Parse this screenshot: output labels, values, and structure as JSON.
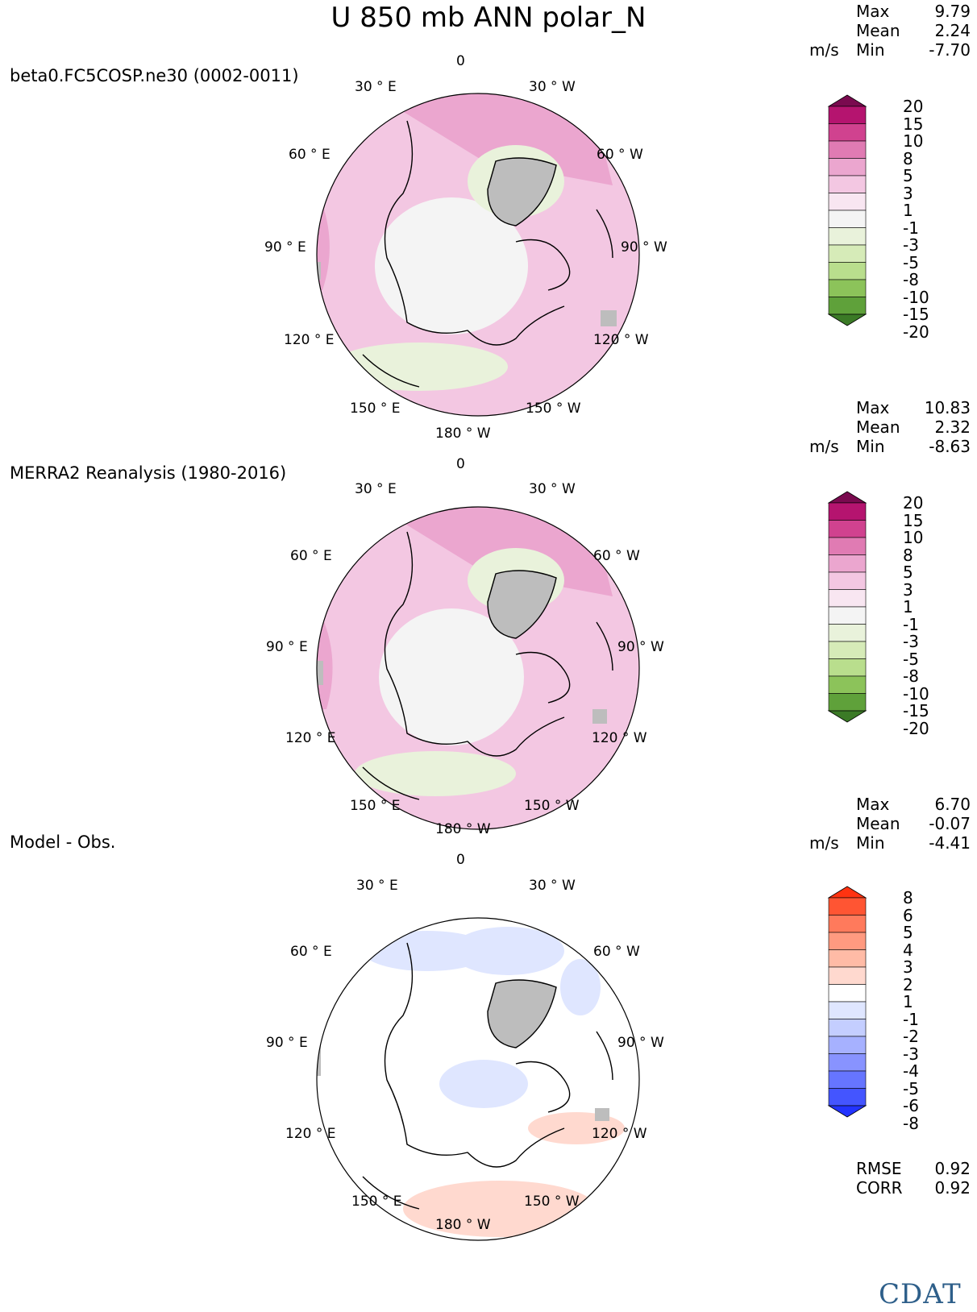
{
  "title": "U 850 mb ANN polar_N",
  "units": "m/s",
  "panels": [
    {
      "label": "beta0.FC5COSP.ne30 (0002-0011)",
      "stats": {
        "max_label": "Max",
        "max": "9.79",
        "mean_label": "Mean",
        "mean": "2.24",
        "min_label": "Min",
        "min": "-7.70"
      },
      "colorbar": [
        "20",
        "15",
        "10",
        "8",
        "5",
        "3",
        "1",
        "-1",
        "-3",
        "-5",
        "-8",
        "-10",
        "-15",
        "-20"
      ]
    },
    {
      "label": "MERRA2 Reanalysis (1980-2016)",
      "stats": {
        "max_label": "Max",
        "max": "10.83",
        "mean_label": "Mean",
        "mean": "2.32",
        "min_label": "Min",
        "min": "-8.63"
      },
      "colorbar": [
        "20",
        "15",
        "10",
        "8",
        "5",
        "3",
        "1",
        "-1",
        "-3",
        "-5",
        "-8",
        "-10",
        "-15",
        "-20"
      ]
    },
    {
      "label": "Model - Obs.",
      "stats": {
        "max_label": "Max",
        "max": "6.70",
        "mean_label": "Mean",
        "mean": "-0.07",
        "min_label": "Min",
        "min": "-4.41"
      },
      "colorbar": [
        "8",
        "6",
        "5",
        "4",
        "3",
        "2",
        "1",
        "-1",
        "-2",
        "-3",
        "-4",
        "-5",
        "-6",
        "-8"
      ],
      "metrics": {
        "rmse_label": "RMSE",
        "rmse": "0.92",
        "corr_label": "CORR",
        "corr": "0.92"
      }
    }
  ],
  "longitude_labels": {
    "top": "0",
    "bottom": "180 ° W",
    "left_30": "30 ° E",
    "right_30": "30 ° W",
    "left_60": "60 ° E",
    "right_60": "60 ° W",
    "left_90": "90 ° E",
    "right_90": "90 ° W",
    "left_120": "120 ° E",
    "right_120": "120 ° W",
    "left_150": "150 ° E",
    "right_150": "150 ° W"
  },
  "colors": {
    "field_palette": [
      "#7a0a4f",
      "#b5146f",
      "#d0428f",
      "#e07bb3",
      "#eba6cf",
      "#f3c7e2",
      "#f8e6f1",
      "#f4f4f4",
      "#e9f2db",
      "#d6ebb8",
      "#b9de8d",
      "#8cc35a",
      "#5fa13a",
      "#3b7a26"
    ],
    "diff_palette": [
      "#ff3311",
      "#ff5533",
      "#ff7a5c",
      "#ff9a80",
      "#ffbba6",
      "#ffd9cf",
      "#ffffff",
      "#dfe6ff",
      "#c4ceff",
      "#a6b1ff",
      "#8893ff",
      "#6675ff",
      "#4455ff",
      "#2233ff"
    ],
    "missing": "#bdbdbd",
    "logo": "#2e5f8a"
  },
  "logo_text": "CDAT"
}
